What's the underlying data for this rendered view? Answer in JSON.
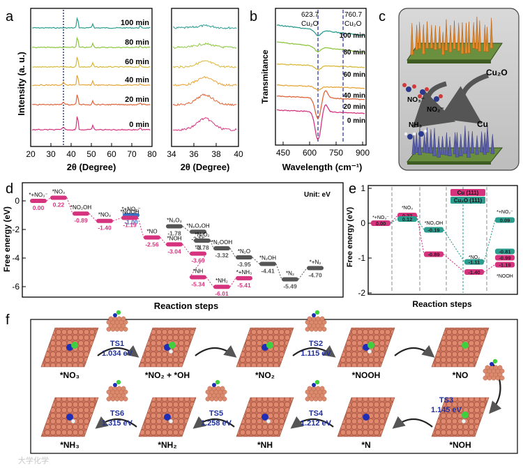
{
  "panels": {
    "a": "a",
    "b": "b",
    "c": "c",
    "d": "d",
    "e": "e",
    "f": "f"
  },
  "panel_a": {
    "ylabel": "Intensity (a. u.)",
    "xlabel_left": "2θ (Degree)",
    "xlabel_right": "2θ (Degree)",
    "xticks_left": [
      "20",
      "30",
      "40",
      "50",
      "60",
      "70",
      "80"
    ],
    "xticks_right": [
      "34",
      "36",
      "38",
      "40"
    ],
    "curves": [
      {
        "label": "100 min",
        "color": "#2a9d8f"
      },
      {
        "label": "80 min",
        "color": "#8dc63f"
      },
      {
        "label": "60 min",
        "color": "#d8b93a"
      },
      {
        "label": "40 min",
        "color": "#e8a53a"
      },
      {
        "label": "20 min",
        "color": "#e0663a"
      },
      {
        "label": "0 min",
        "color": "#d6337f"
      }
    ]
  },
  "panel_b": {
    "ylabel": "Transmitance",
    "xlabel": "Wavelength (cm⁻¹)",
    "xticks": [
      "450",
      "600",
      "750",
      "900"
    ],
    "mark1": "623.7",
    "mark1_sub": "Cu₂O",
    "mark2": "760.7",
    "mark2_sub": "Cu₂O",
    "curves": [
      {
        "label": "100 min",
        "color": "#2a9d8f"
      },
      {
        "label": "80 min",
        "color": "#8dc63f"
      },
      {
        "label": "60 min",
        "color": "#d8b93a"
      },
      {
        "label": "40 min",
        "color": "#e8a53a"
      },
      {
        "label": "20 min",
        "color": "#e0663a"
      },
      {
        "label": "0 min",
        "color": "#d6337f"
      }
    ]
  },
  "panel_c": {
    "cu2o": "Cu₂O",
    "cu": "Cu",
    "no3": "NO₃⁻",
    "no2": "NO₂⁻",
    "nh3": "NH₃"
  },
  "panel_d": {
    "ylabel": "Free energy (eV)",
    "xlabel": "Reaction steps",
    "unit": "Unit: eV",
    "yticks": [
      "0",
      "-2",
      "-4",
      "-6"
    ],
    "series": {
      "pink": "#d6337f",
      "gray": "#555555",
      "blue": "#3a72c8"
    },
    "levels": [
      {
        "label": "*+NO₃⁻",
        "value": "0.00",
        "series": "pink"
      },
      {
        "label": "*NO₃",
        "value": "0.22",
        "series": "pink"
      },
      {
        "label": "*NO₂OH",
        "value": "-0.89",
        "series": "pink"
      },
      {
        "label": "*NO₂",
        "value": "-1.40",
        "series": "pink"
      },
      {
        "label": "*+NO₂⁻",
        "value": "-1.00",
        "series": "blue"
      },
      {
        "label": "*NOOH",
        "value": "-1.19",
        "series": "pink"
      },
      {
        "label": "*NO",
        "value": "-2.56",
        "series": "pink"
      },
      {
        "label": "*N₂O₃",
        "value": "-1.78",
        "series": "gray"
      },
      {
        "label": "*NOH",
        "value": "-3.04",
        "series": "pink"
      },
      {
        "label": "*N₂O₂OH",
        "value": "-2.16",
        "series": "gray"
      },
      {
        "label": "*N",
        "value": "-3.69",
        "series": "pink"
      },
      {
        "label": "*N₂O₂",
        "value": "-2.78",
        "series": "gray"
      },
      {
        "label": "*N₂OOH",
        "value": "-3.32",
        "series": "gray"
      },
      {
        "label": "*NH",
        "value": "-5.34",
        "series": "pink"
      },
      {
        "label": "*NH₂",
        "value": "-6.01",
        "series": "pink"
      },
      {
        "label": "*+NH₃",
        "value": "-5.41",
        "series": "pink"
      },
      {
        "label": "*N₂O",
        "value": "-3.95",
        "series": "gray"
      },
      {
        "label": "*N₂OH",
        "value": "-4.41",
        "series": "gray"
      },
      {
        "label": "*N₂",
        "value": "-5.49",
        "series": "gray"
      },
      {
        "label": "*+N₂",
        "value": "-4.70",
        "series": "gray"
      }
    ]
  },
  "panel_e": {
    "ylabel": "Free energy (eV)",
    "xlabel": "Reaction steps",
    "yticks": [
      "1",
      "0",
      "-1",
      "-2"
    ],
    "legend": [
      {
        "label": "Cu (111)",
        "color": "#d6337f"
      },
      {
        "label": "Cu₂O (111)",
        "color": "#2a9d8f"
      }
    ],
    "labels": {
      "s1": "*+NO₃⁻",
      "s2": "*NO₃",
      "s3": "*NO₂OH",
      "s4": "*NO₂",
      "s5": "*NOOH",
      "s6": "*+NO₂⁻"
    },
    "values": {
      "a": "0.00",
      "b": "0.22",
      "c": "0.12",
      "d": "-0.19",
      "e": "-0.89",
      "f": "-1.11",
      "g": "-1.40",
      "h": "0.09",
      "i": "-0.81",
      "j": "-0.99",
      "k": "-1.19"
    }
  },
  "panel_f": {
    "row1": [
      "*NO₃",
      "*NO₂ + *OH",
      "*NO₂",
      "*NOOH",
      "*NO"
    ],
    "row2": [
      "*NH₃",
      "*NH₂",
      "*NH",
      "*N",
      "*NOH"
    ],
    "ts": [
      {
        "name": "TS1",
        "energy": "1.034 eV"
      },
      {
        "name": "TS2",
        "energy": "1.115 eV"
      },
      {
        "name": "TS3",
        "energy": "1.145 eV"
      },
      {
        "name": "TS4",
        "energy": "1.212 eV"
      },
      {
        "name": "TS5",
        "energy": "1.258 eV"
      },
      {
        "name": "TS6",
        "energy": "1.315 eV"
      }
    ]
  },
  "watermark": "大学化学"
}
